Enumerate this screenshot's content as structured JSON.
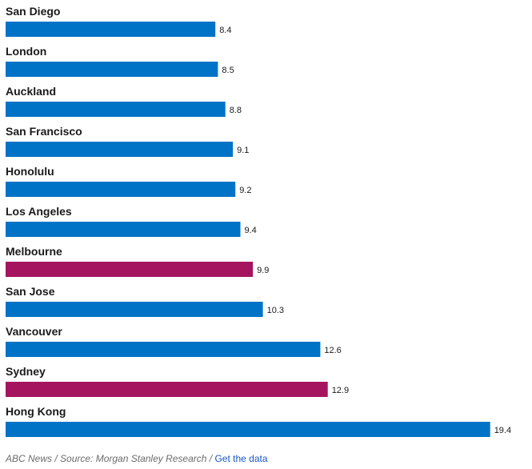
{
  "colors": {
    "default_bar": "#0073c6",
    "highlight_bar": "#a5155f",
    "label_text": "#1a1a1a",
    "value_text": "#1a1a1a"
  },
  "chart_data": {
    "type": "bar",
    "orientation": "horizontal",
    "categories": [
      "San Diego",
      "London",
      "Auckland",
      "San Francisco",
      "Honolulu",
      "Los Angeles",
      "Melbourne",
      "San Jose",
      "Vancouver",
      "Sydney",
      "Hong Kong"
    ],
    "values": [
      8.4,
      8.5,
      8.8,
      9.1,
      9.2,
      9.4,
      9.9,
      10.3,
      12.6,
      12.9,
      19.4
    ],
    "highlighted": [
      "Melbourne",
      "Sydney"
    ],
    "xlim": [
      0,
      20.5
    ],
    "grid": false,
    "title": "",
    "xlabel": "",
    "ylabel": ""
  },
  "footer": {
    "source": "ABC News / Source: Morgan Stanley Research / ",
    "link": "Get the data"
  }
}
